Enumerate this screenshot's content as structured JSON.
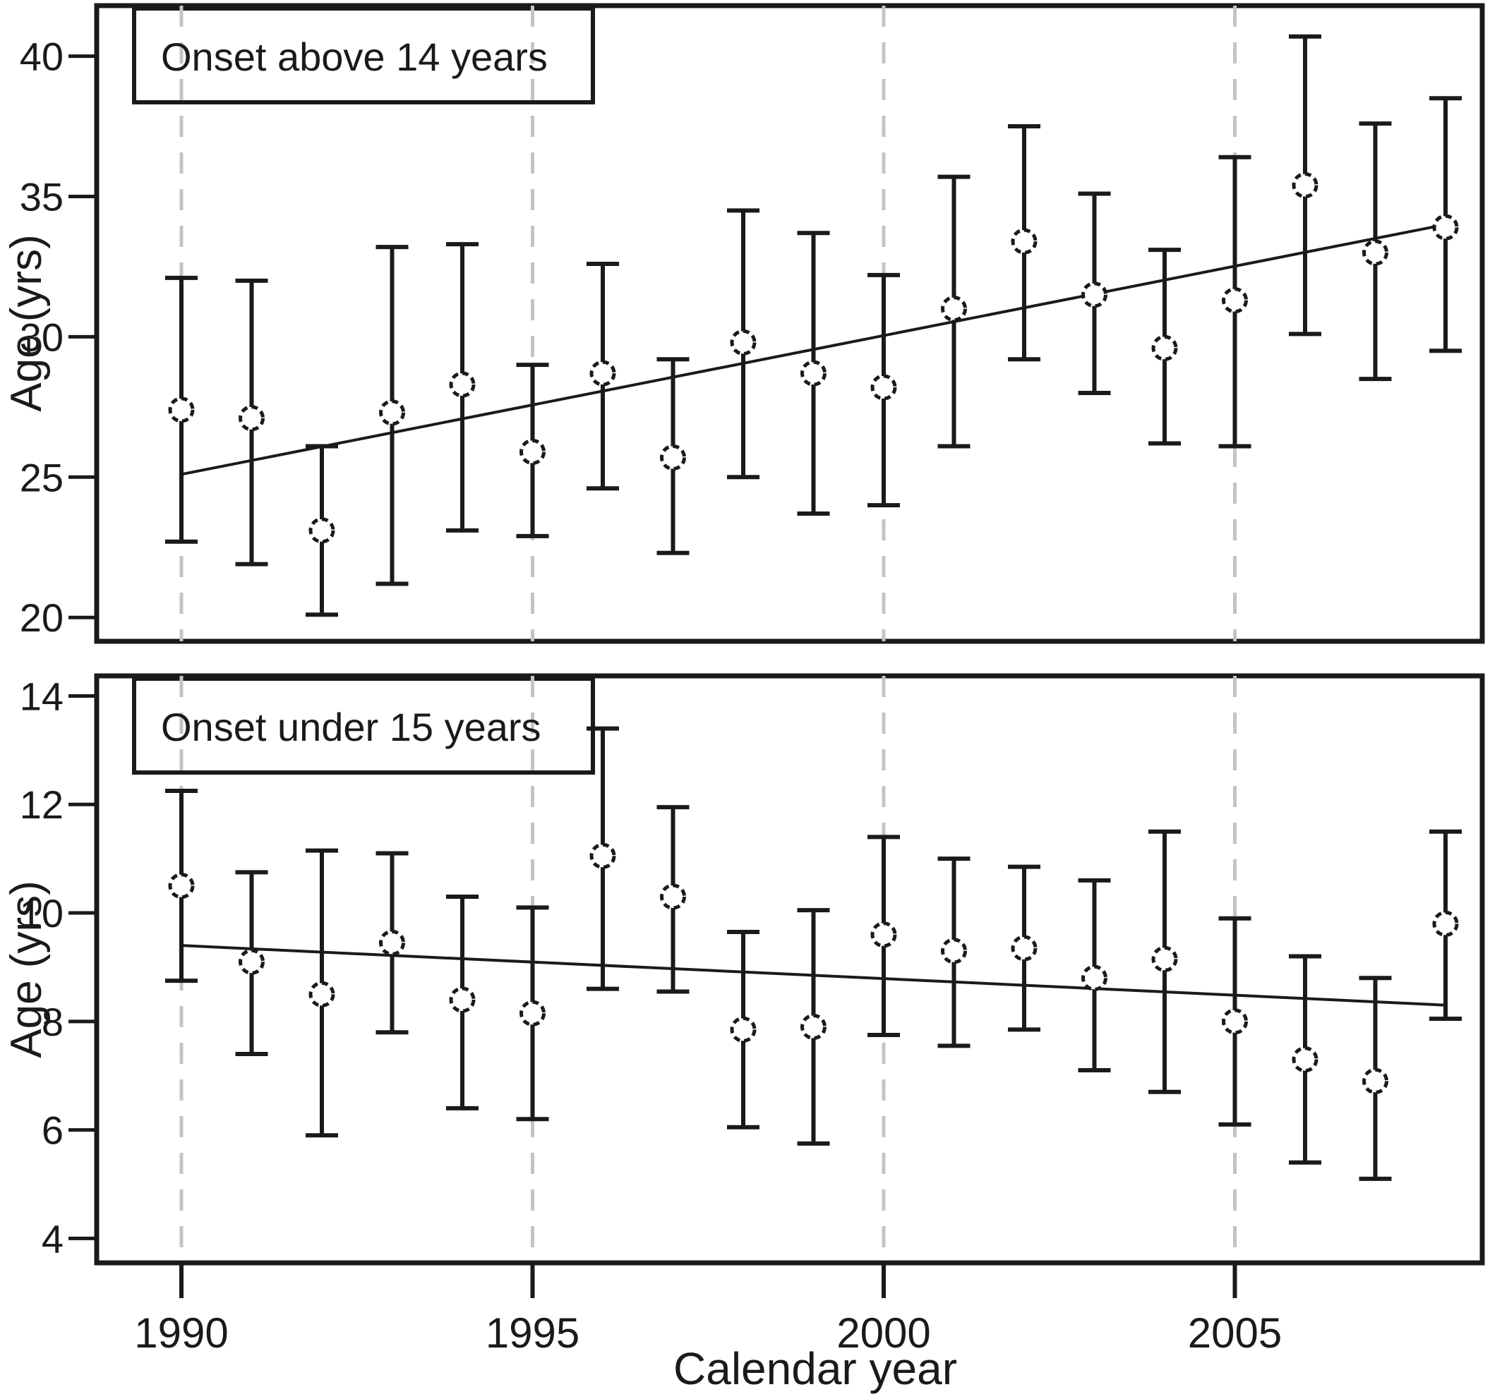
{
  "figure": {
    "xlabel": "Calendar year",
    "x_ticks": [
      1990,
      1995,
      2000,
      2005
    ],
    "x_tick_labels": [
      "1990",
      "1995",
      "2000",
      "2005"
    ],
    "years": [
      1990,
      1991,
      1992,
      1993,
      1994,
      1995,
      1996,
      1997,
      1998,
      1999,
      2000,
      2001,
      2002,
      2003,
      2004,
      2005,
      2006,
      2007,
      2008
    ],
    "colors": {
      "foreground": "#1a1a1a",
      "background": "#ffffff",
      "gridline": "#c4c4c4"
    }
  },
  "chart_data": [
    {
      "type": "scatter",
      "error_bars": true,
      "panel": "top",
      "annotation": "Onset above 14 years",
      "ylabel": "Age (yrs)",
      "ylim": [
        19.15,
        41.8
      ],
      "yticks": [
        20,
        25,
        30,
        35,
        40
      ],
      "x": [
        1990,
        1991,
        1992,
        1993,
        1994,
        1995,
        1996,
        1997,
        1998,
        1999,
        2000,
        2001,
        2002,
        2003,
        2004,
        2005,
        2006,
        2007,
        2008
      ],
      "means": [
        27.4,
        27.1,
        23.1,
        27.3,
        28.3,
        25.9,
        28.7,
        25.7,
        29.8,
        28.7,
        28.2,
        31.0,
        33.4,
        31.5,
        29.6,
        31.3,
        35.4,
        33.0,
        33.9
      ],
      "ci_low": [
        22.7,
        21.9,
        20.1,
        21.2,
        23.1,
        22.9,
        24.6,
        22.3,
        25.0,
        23.7,
        24.0,
        26.1,
        29.2,
        28.0,
        26.2,
        26.1,
        30.1,
        28.5,
        29.5
      ],
      "ci_high": [
        32.1,
        32.0,
        26.1,
        33.2,
        33.3,
        29.0,
        32.6,
        29.2,
        34.5,
        33.7,
        32.2,
        35.7,
        37.5,
        35.1,
        33.1,
        36.4,
        40.7,
        37.6,
        38.5
      ],
      "trend": {
        "x": [
          1990,
          2008
        ],
        "y": [
          25.1,
          34.0
        ]
      },
      "legend_position": "none",
      "grid": "vertical-dashed"
    },
    {
      "type": "scatter",
      "error_bars": true,
      "panel": "bottom",
      "annotation": "Onset under 15 years",
      "ylabel": "Age (yrs)",
      "ylim": [
        3.55,
        14.37
      ],
      "yticks": [
        4,
        6,
        8,
        10,
        12,
        14
      ],
      "x": [
        1990,
        1991,
        1992,
        1993,
        1994,
        1995,
        1996,
        1997,
        1998,
        1999,
        2000,
        2001,
        2002,
        2003,
        2004,
        2005,
        2006,
        2007,
        2008
      ],
      "means": [
        10.5,
        9.1,
        8.5,
        9.45,
        8.4,
        8.15,
        11.05,
        10.3,
        7.85,
        7.9,
        9.6,
        9.3,
        9.35,
        8.8,
        9.15,
        8.0,
        7.3,
        6.9,
        9.8
      ],
      "ci_low": [
        8.75,
        7.4,
        5.9,
        7.8,
        6.4,
        6.2,
        8.6,
        8.55,
        6.05,
        5.75,
        7.75,
        7.55,
        7.85,
        7.1,
        6.7,
        6.1,
        5.4,
        5.1,
        8.05
      ],
      "ci_high": [
        12.25,
        10.75,
        11.15,
        11.1,
        10.3,
        10.1,
        13.4,
        11.95,
        9.65,
        10.05,
        11.4,
        11.0,
        10.85,
        10.6,
        11.5,
        9.9,
        9.2,
        8.8,
        11.5
      ],
      "trend": {
        "x": [
          1990,
          2008
        ],
        "y": [
          9.4,
          8.3
        ]
      },
      "legend_position": "none",
      "grid": "vertical-dashed"
    }
  ]
}
